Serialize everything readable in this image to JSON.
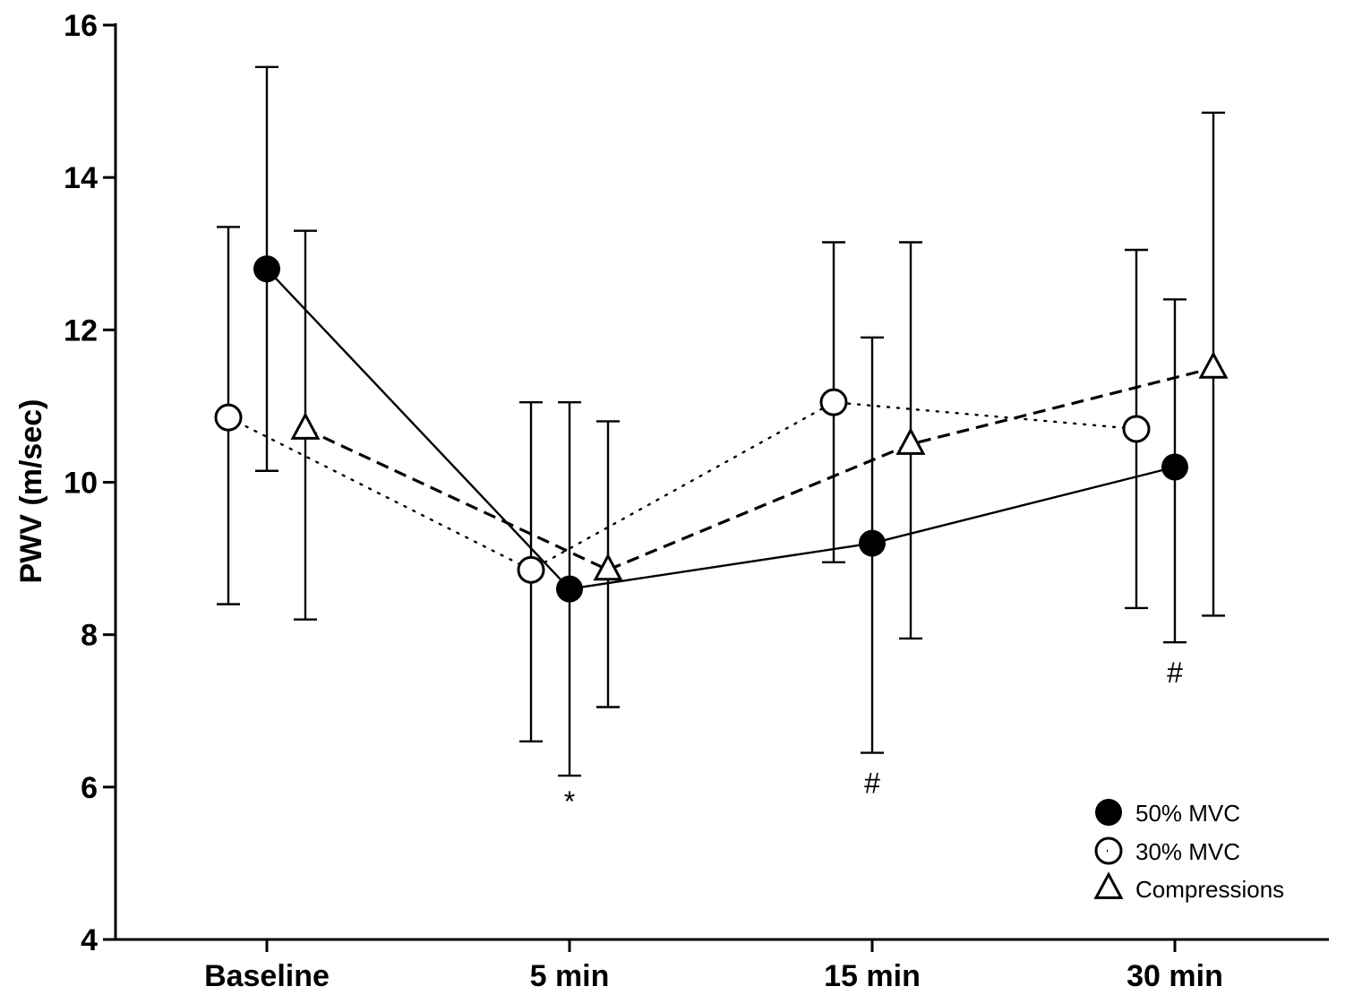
{
  "chart_data": {
    "type": "line",
    "title": "",
    "xlabel": "",
    "ylabel": "PWV (m/sec)",
    "categories": [
      "Baseline",
      "5 min",
      "15 min",
      "30 min"
    ],
    "ylim": [
      4,
      16
    ],
    "yticks": [
      4,
      6,
      8,
      10,
      12,
      14,
      16
    ],
    "grid": false,
    "legend_position": "bottom-right",
    "series": [
      {
        "name": "50% MVC",
        "marker": "filled-circle",
        "line_style": "solid",
        "values": [
          12.8,
          8.6,
          9.2,
          10.2
        ],
        "error_low": [
          10.15,
          6.15,
          6.45,
          7.9
        ],
        "error_high": [
          15.45,
          11.05,
          11.9,
          12.4
        ]
      },
      {
        "name": "30% MVC",
        "marker": "open-circle",
        "line_style": "dotted",
        "values": [
          10.85,
          8.85,
          11.05,
          10.7
        ],
        "error_low": [
          8.4,
          6.6,
          8.95,
          8.35
        ],
        "error_high": [
          13.35,
          11.05,
          13.15,
          13.05
        ]
      },
      {
        "name": "Compressions",
        "marker": "open-triangle",
        "line_style": "dashed",
        "values": [
          10.7,
          8.85,
          10.5,
          11.5
        ],
        "error_low": [
          8.2,
          7.05,
          7.95,
          8.25
        ],
        "error_high": [
          13.3,
          10.8,
          13.15,
          14.85
        ]
      }
    ],
    "annotations": [
      {
        "category": "5 min",
        "text": "*"
      },
      {
        "category": "15 min",
        "text": "#"
      },
      {
        "category": "30 min",
        "text": "#"
      }
    ]
  }
}
